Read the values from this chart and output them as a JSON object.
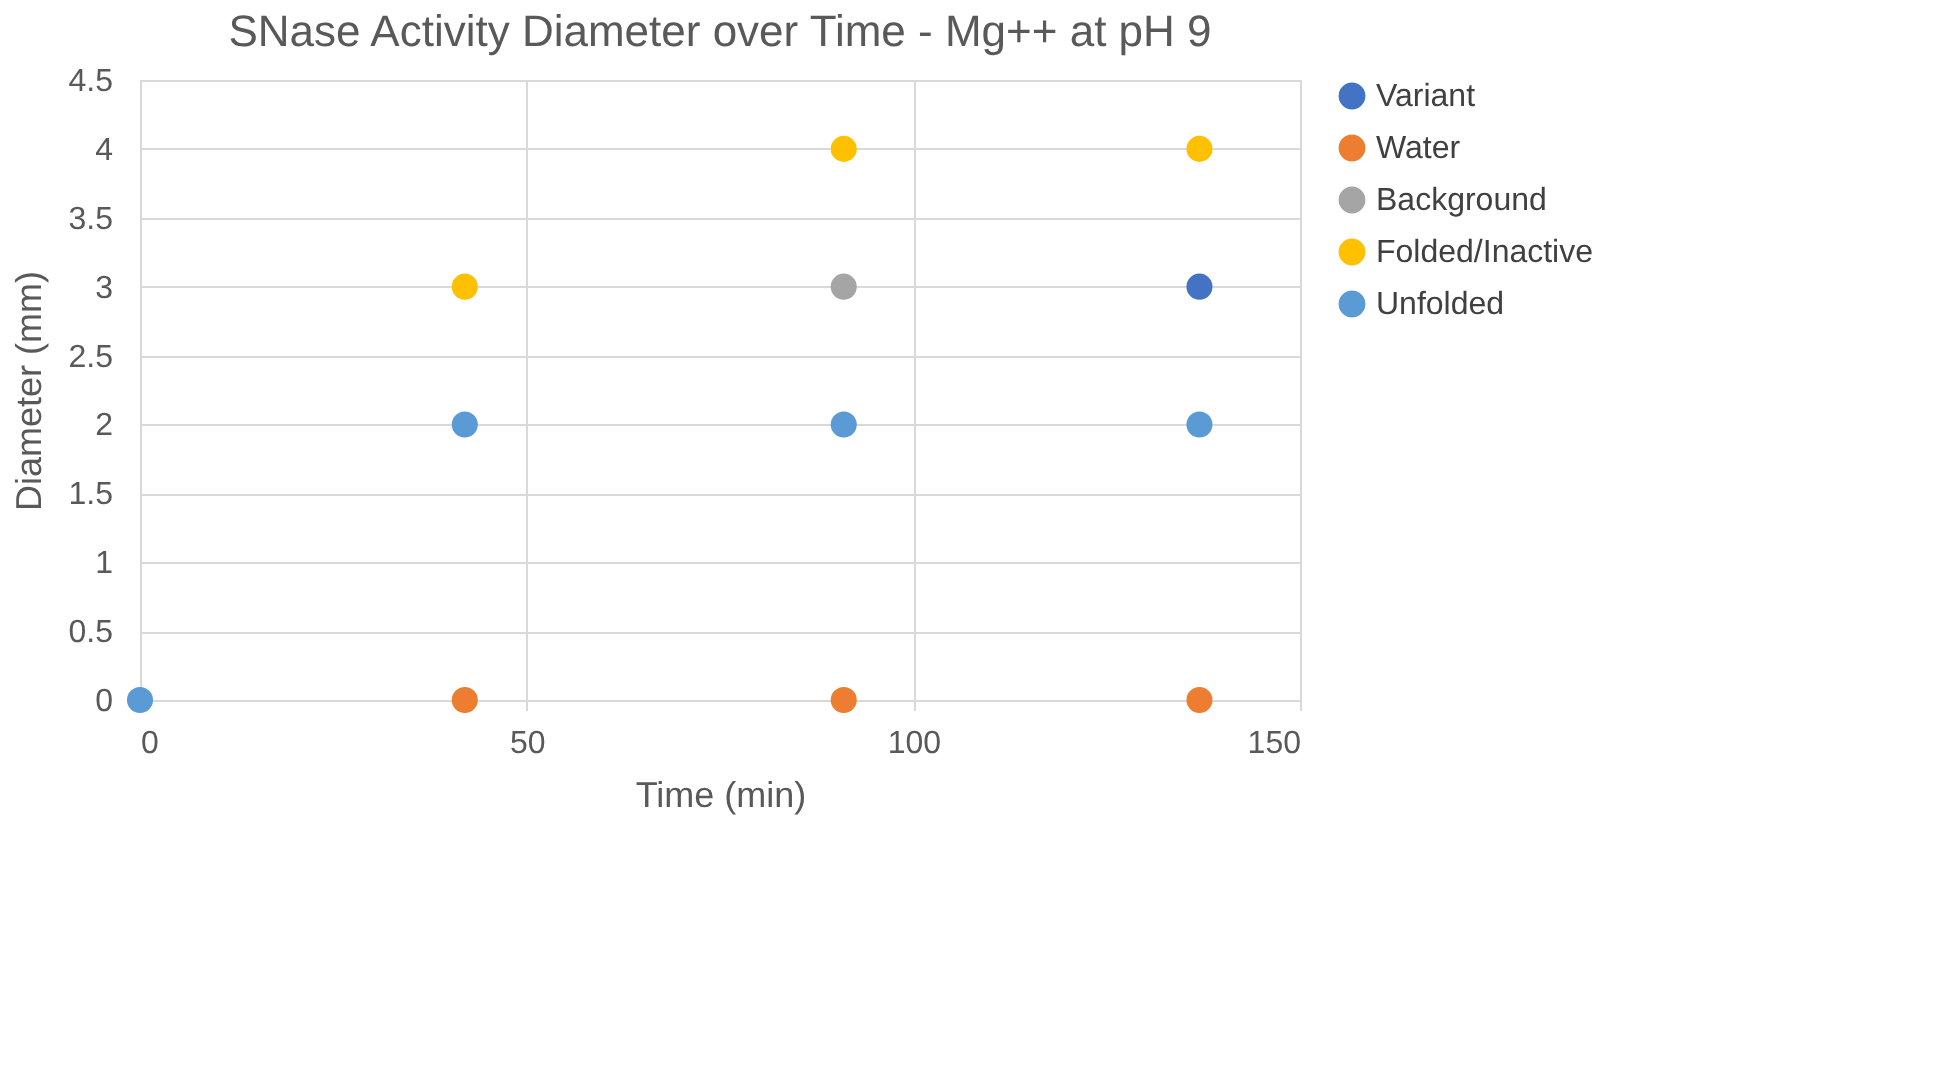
{
  "chart_data": {
    "type": "scatter",
    "title": "SNase Activity Diameter over Time - Mg++ at pH 9",
    "xlabel": "Time (min)",
    "ylabel": "Diameter (mm)",
    "x": [
      0,
      42,
      91,
      137
    ],
    "series": [
      {
        "name": "Variant",
        "color": "#4472c4",
        "values": [
          null,
          null,
          null,
          3
        ]
      },
      {
        "name": "Water",
        "color": "#ed7d31",
        "values": [
          null,
          0,
          0,
          0
        ]
      },
      {
        "name": "Background",
        "color": "#a5a5a5",
        "values": [
          null,
          null,
          3,
          null
        ]
      },
      {
        "name": "Folded/Inactive",
        "color": "#ffc000",
        "values": [
          null,
          3,
          4,
          4
        ]
      },
      {
        "name": "Unfolded",
        "color": "#5b9bd5",
        "values": [
          0,
          2,
          2,
          2
        ]
      }
    ],
    "xlim": [
      0,
      150
    ],
    "xticks": [
      0,
      50,
      100,
      150
    ],
    "ylim": [
      0,
      4.5
    ],
    "yticks": [
      0,
      0.5,
      1,
      1.5,
      2,
      2.5,
      3,
      3.5,
      4,
      4.5
    ],
    "grid": true,
    "legend": "right",
    "marker": "circle"
  }
}
